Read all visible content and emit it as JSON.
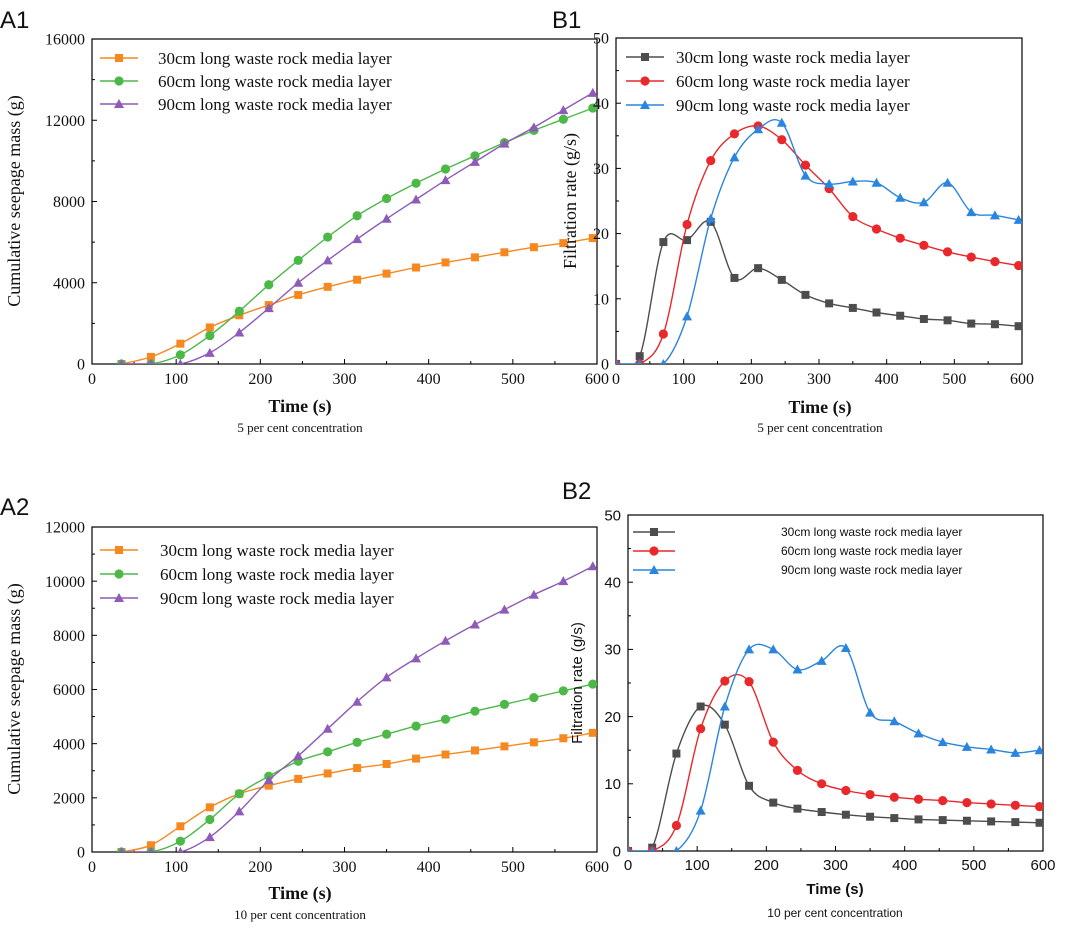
{
  "series_names": [
    "30cm long waste rock media layer",
    "60cm long waste rock media layer",
    "90cm long waste rock media layer"
  ],
  "series_colors": [
    "#f5881f",
    "#4cb848",
    "#8e5bb8"
  ],
  "chart_data": [
    {
      "id": "A1",
      "panel_label": "A1",
      "type": "line",
      "title": "",
      "xlabel": "Time (s)",
      "ylabel": "Cumulative seepage mass (g)",
      "caption": "5 per cent concentration",
      "xlim": [
        0,
        600
      ],
      "ylim": [
        0,
        16000
      ],
      "xticks": [
        0,
        100,
        200,
        300,
        400,
        500,
        600
      ],
      "yticks": [
        0,
        4000,
        8000,
        12000,
        16000
      ],
      "legend": "top-left",
      "x": [
        35,
        70,
        105,
        140,
        175,
        210,
        245,
        280,
        315,
        350,
        385,
        420,
        455,
        490,
        525,
        560,
        595
      ],
      "series": [
        {
          "name": "30cm long waste rock media layer",
          "color": "#f5881f",
          "marker": "square",
          "values": [
            0,
            350,
            1000,
            1800,
            2400,
            2900,
            3400,
            3800,
            4150,
            4450,
            4750,
            5000,
            5250,
            5500,
            5750,
            5950,
            6200
          ]
        },
        {
          "name": "60cm long waste rock media layer",
          "color": "#4cb848",
          "marker": "circle",
          "values": [
            0,
            0,
            450,
            1400,
            2600,
            3900,
            5100,
            6250,
            7300,
            8150,
            8900,
            9600,
            10250,
            10900,
            11500,
            12050,
            12600
          ]
        },
        {
          "name": "90cm long waste rock media layer",
          "color": "#8e5bb8",
          "marker": "triangle",
          "values": [
            0,
            0,
            0,
            550,
            1550,
            2750,
            4000,
            5100,
            6150,
            7150,
            8100,
            9050,
            9950,
            10850,
            11650,
            12500,
            13350
          ]
        }
      ]
    },
    {
      "id": "B1",
      "panel_label": "B1",
      "type": "line",
      "title": "",
      "xlabel": "Time (s)",
      "ylabel": "Filtration rate (g/s)",
      "caption": "5 per cent concentration",
      "xlim": [
        0,
        600
      ],
      "ylim": [
        0,
        50
      ],
      "xticks": [
        0,
        100,
        200,
        300,
        400,
        500,
        600
      ],
      "yticks": [
        0,
        10,
        20,
        30,
        40,
        50
      ],
      "legend": "top-left",
      "series": [
        {
          "name": "30cm long waste rock media layer",
          "color": "#4d4d4d",
          "marker": "square",
          "x": [
            0,
            35,
            70,
            105,
            140,
            175,
            210,
            245,
            280,
            315,
            350,
            385,
            420,
            455,
            490,
            525,
            560,
            595
          ],
          "values": [
            0,
            1.2,
            18.7,
            19.0,
            21.8,
            13.2,
            14.7,
            12.9,
            10.6,
            9.3,
            8.6,
            7.9,
            7.4,
            6.9,
            6.7,
            6.2,
            6.1,
            5.8
          ]
        },
        {
          "name": "60cm long waste rock media layer",
          "color": "#e8282b",
          "marker": "circle",
          "x": [
            0,
            35,
            70,
            105,
            140,
            175,
            210,
            245,
            280,
            315,
            350,
            385,
            420,
            455,
            490,
            525,
            560,
            595
          ],
          "values": [
            0,
            0,
            4.6,
            21.4,
            31.2,
            35.3,
            36.5,
            34.4,
            30.5,
            26.9,
            22.6,
            20.7,
            19.3,
            18.2,
            17.2,
            16.4,
            15.7,
            15.1
          ]
        },
        {
          "name": "90cm long waste rock media layer",
          "color": "#2a85de",
          "marker": "triangle",
          "x": [
            0,
            35,
            70,
            105,
            140,
            175,
            210,
            245,
            280,
            315,
            350,
            385,
            420,
            455,
            490,
            525,
            560,
            595
          ],
          "values": [
            0,
            0,
            0,
            7.3,
            22.3,
            31.7,
            36.0,
            37.0,
            28.9,
            27.6,
            28.0,
            27.8,
            25.5,
            24.8,
            27.8,
            23.3,
            22.8,
            22.1
          ]
        }
      ]
    },
    {
      "id": "A2",
      "panel_label": "A2",
      "type": "line",
      "title": "",
      "xlabel": "Time (s)",
      "ylabel": "Cumulative seepage mass (g)",
      "caption": "10 per cent concentration",
      "xlim": [
        0,
        600
      ],
      "ylim": [
        0,
        12000
      ],
      "xticks": [
        0,
        100,
        200,
        300,
        400,
        500,
        600
      ],
      "yticks": [
        0,
        2000,
        4000,
        6000,
        8000,
        10000,
        12000
      ],
      "legend": "top-left",
      "x": [
        35,
        70,
        105,
        140,
        175,
        210,
        245,
        280,
        315,
        350,
        385,
        420,
        455,
        490,
        525,
        560,
        595
      ],
      "series": [
        {
          "name": "30cm long waste rock media layer",
          "color": "#f5881f",
          "marker": "square",
          "values": [
            0,
            250,
            950,
            1650,
            2150,
            2450,
            2700,
            2900,
            3100,
            3250,
            3450,
            3600,
            3750,
            3900,
            4050,
            4200,
            4400
          ]
        },
        {
          "name": "60cm long waste rock media layer",
          "color": "#4cb848",
          "marker": "circle",
          "values": [
            0,
            0,
            400,
            1200,
            2150,
            2800,
            3350,
            3700,
            4050,
            4350,
            4650,
            4900,
            5200,
            5450,
            5700,
            5950,
            6200
          ]
        },
        {
          "name": "90cm long waste rock media layer",
          "color": "#8e5bb8",
          "marker": "triangle",
          "values": [
            0,
            0,
            0,
            550,
            1500,
            2650,
            3550,
            4550,
            5550,
            6450,
            7150,
            7800,
            8400,
            8950,
            9500,
            10000,
            10550
          ]
        }
      ]
    },
    {
      "id": "B2",
      "panel_label": "B2",
      "type": "line",
      "title": "",
      "xlabel": "Time (s)",
      "ylabel": "Filtration rate (g/s)",
      "caption": "10 per cent concentration",
      "xlim": [
        0,
        600
      ],
      "ylim": [
        0,
        50
      ],
      "xticks": [
        0,
        100,
        200,
        300,
        400,
        500,
        600
      ],
      "yticks": [
        0,
        10,
        20,
        30,
        40,
        50
      ],
      "legend": "top-left",
      "series": [
        {
          "name": "30cm long waste rock media layer",
          "color": "#4d4d4d",
          "marker": "square",
          "x": [
            0,
            35,
            70,
            105,
            140,
            175,
            210,
            245,
            280,
            315,
            350,
            385,
            420,
            455,
            490,
            525,
            560,
            595
          ],
          "values": [
            0,
            0.5,
            14.5,
            21.5,
            18.8,
            9.7,
            7.2,
            6.3,
            5.8,
            5.4,
            5.1,
            4.9,
            4.7,
            4.6,
            4.5,
            4.4,
            4.3,
            4.2
          ]
        },
        {
          "name": "60cm long waste rock media layer",
          "color": "#e8282b",
          "marker": "circle",
          "x": [
            0,
            35,
            70,
            105,
            140,
            175,
            210,
            245,
            280,
            315,
            350,
            385,
            420,
            455,
            490,
            525,
            560,
            595
          ],
          "values": [
            0,
            0,
            3.8,
            18.2,
            25.3,
            25.2,
            16.2,
            12.0,
            10.0,
            9.0,
            8.4,
            8.0,
            7.7,
            7.5,
            7.2,
            7.0,
            6.8,
            6.6
          ]
        },
        {
          "name": "90cm long waste rock media layer",
          "color": "#2a85de",
          "marker": "triangle",
          "x": [
            0,
            35,
            70,
            105,
            140,
            175,
            210,
            245,
            280,
            315,
            350,
            385,
            420,
            455,
            490,
            525,
            560,
            595
          ],
          "values": [
            0,
            0,
            0,
            6.0,
            21.5,
            30.0,
            30.0,
            27.0,
            28.3,
            30.2,
            20.6,
            19.3,
            17.5,
            16.2,
            15.5,
            15.1,
            14.6,
            15.0
          ]
        }
      ]
    }
  ]
}
